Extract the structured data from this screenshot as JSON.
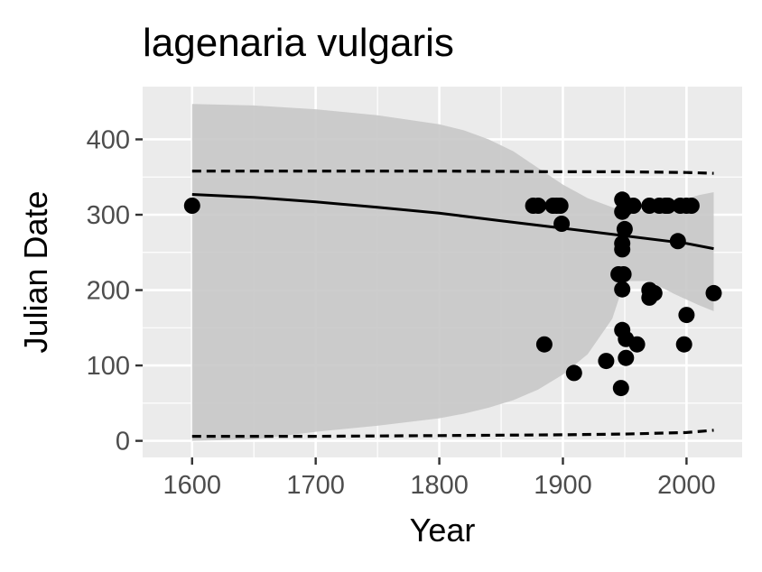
{
  "chart_data": {
    "type": "scatter",
    "title": "lagenaria vulgaris",
    "xlabel": "Year",
    "ylabel": "Julian Date",
    "xlim": [
      1560,
      2045
    ],
    "ylim": [
      -22,
      470
    ],
    "x_ticks": [
      1600,
      1700,
      1800,
      1900,
      2000
    ],
    "y_ticks": [
      0,
      100,
      200,
      300,
      400
    ],
    "x_tick_labels": [
      "1600",
      "1700",
      "1800",
      "1900",
      "2000"
    ],
    "y_tick_labels": [
      "0",
      "100",
      "200",
      "300",
      "400"
    ],
    "grid": true,
    "legend": "none",
    "colors": {
      "panel": "#ebebeb",
      "grid_major": "#ffffff",
      "ribbon": "#c8c8c8",
      "line": "#000000",
      "points": "#000000",
      "tick_text": "#4d4d4d"
    },
    "points": [
      {
        "x": 1600,
        "y": 312
      },
      {
        "x": 1876,
        "y": 312
      },
      {
        "x": 1880,
        "y": 312
      },
      {
        "x": 1885,
        "y": 128
      },
      {
        "x": 1892,
        "y": 312
      },
      {
        "x": 1895,
        "y": 312
      },
      {
        "x": 1898,
        "y": 312
      },
      {
        "x": 1899,
        "y": 288
      },
      {
        "x": 1909,
        "y": 90
      },
      {
        "x": 1935,
        "y": 106
      },
      {
        "x": 1945,
        "y": 221
      },
      {
        "x": 1947,
        "y": 70
      },
      {
        "x": 1948,
        "y": 320
      },
      {
        "x": 1948,
        "y": 304
      },
      {
        "x": 1948,
        "y": 262
      },
      {
        "x": 1948,
        "y": 254
      },
      {
        "x": 1948,
        "y": 201
      },
      {
        "x": 1948,
        "y": 147
      },
      {
        "x": 1949,
        "y": 221
      },
      {
        "x": 1950,
        "y": 281
      },
      {
        "x": 1950,
        "y": 308
      },
      {
        "x": 1951,
        "y": 135
      },
      {
        "x": 1951,
        "y": 110
      },
      {
        "x": 1953,
        "y": 312
      },
      {
        "x": 1957,
        "y": 312
      },
      {
        "x": 1960,
        "y": 128
      },
      {
        "x": 1970,
        "y": 312
      },
      {
        "x": 1970,
        "y": 190
      },
      {
        "x": 1970,
        "y": 200
      },
      {
        "x": 1974,
        "y": 196
      },
      {
        "x": 1978,
        "y": 312
      },
      {
        "x": 1983,
        "y": 312
      },
      {
        "x": 1985,
        "y": 312
      },
      {
        "x": 1993,
        "y": 265
      },
      {
        "x": 1995,
        "y": 312
      },
      {
        "x": 1998,
        "y": 128
      },
      {
        "x": 2000,
        "y": 312
      },
      {
        "x": 2000,
        "y": 167
      },
      {
        "x": 2004,
        "y": 312
      },
      {
        "x": 2022,
        "y": 196
      }
    ],
    "fit_line": {
      "x": [
        1600,
        1650,
        1700,
        1750,
        1800,
        1850,
        1900,
        1950,
        2000,
        2022
      ],
      "y": [
        327,
        323,
        317,
        310,
        302,
        292,
        282,
        272,
        262,
        255
      ]
    },
    "ribbon": {
      "x": [
        1600,
        1650,
        1700,
        1750,
        1800,
        1820,
        1840,
        1860,
        1880,
        1900,
        1920,
        1940,
        1950,
        1970,
        1990,
        2010,
        2022
      ],
      "upper": [
        447,
        445,
        440,
        432,
        420,
        412,
        400,
        384,
        362,
        340,
        322,
        310,
        305,
        305,
        316,
        326,
        330
      ],
      "lower": [
        0,
        2,
        12,
        20,
        30,
        36,
        44,
        54,
        68,
        88,
        115,
        162,
        212,
        212,
        195,
        180,
        172
      ]
    },
    "upper_dashed": {
      "x": [
        1600,
        1700,
        1800,
        1900,
        1950,
        2000,
        2022
      ],
      "y": [
        358,
        358,
        358,
        357,
        357,
        356,
        355
      ]
    },
    "lower_dashed": {
      "x": [
        1600,
        1700,
        1800,
        1900,
        1950,
        2000,
        2022
      ],
      "y": [
        6,
        6,
        7,
        8,
        9,
        11,
        14
      ]
    }
  }
}
